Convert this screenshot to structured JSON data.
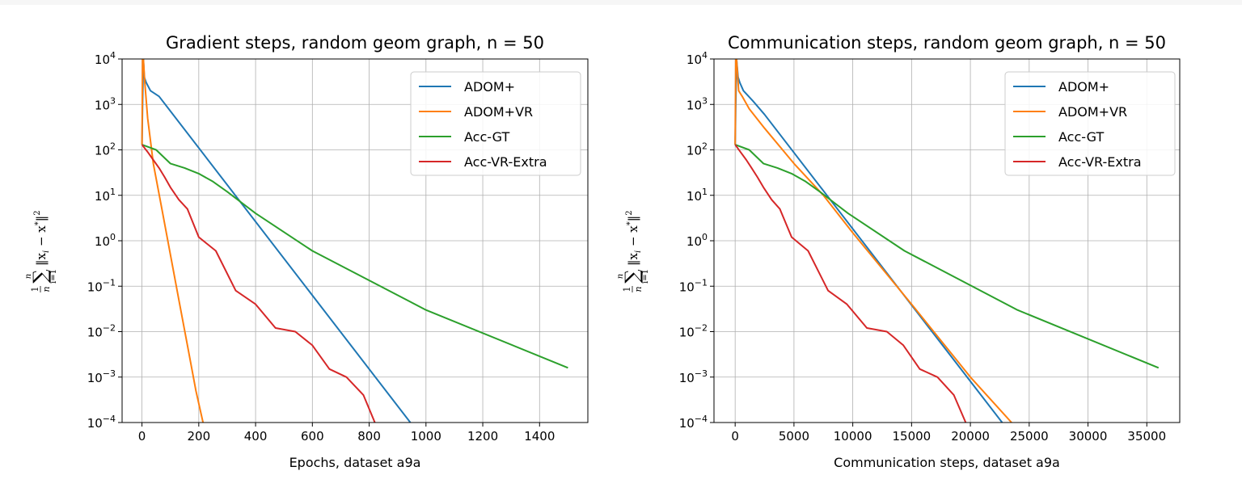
{
  "chart_data": [
    {
      "type": "line",
      "title": "Gradient steps, random geom graph, n = 50",
      "xlabel": "Epochs, dataset a9a",
      "ylabel": "1/n Σ_{i=1}^{n} ||x_i − x*||²",
      "yscale": "log",
      "xlim": [
        -70,
        1570
      ],
      "ylim": [
        0.0001,
        10000
      ],
      "xticks": [
        0,
        200,
        400,
        600,
        800,
        1000,
        1200,
        1400
      ],
      "xticklabels": [
        "0",
        "200",
        "400",
        "600",
        "800",
        "1000",
        "1200",
        "1400"
      ],
      "yticks_exp": [
        4,
        3,
        2,
        1,
        0,
        -1,
        -2,
        -3,
        -4
      ],
      "grid": true,
      "legend_loc": "top-right",
      "series": [
        {
          "name": "ADOM+",
          "color": "#1f77b4",
          "x": [
            0,
            2,
            5,
            8,
            15,
            30,
            60,
            945
          ],
          "y": [
            130,
            1000,
            10000,
            4000,
            3000,
            2000,
            1500,
            0.0001
          ]
        },
        {
          "name": "ADOM+VR",
          "color": "#ff7f0e",
          "x": [
            0,
            2,
            5,
            10,
            20,
            40,
            70,
            100,
            130,
            160,
            190,
            215
          ],
          "y": [
            130,
            10000,
            10000,
            3000,
            500,
            50,
            5,
            0.5,
            0.05,
            0.005,
            0.0005,
            0.0001
          ]
        },
        {
          "name": "Acc-GT",
          "color": "#2ca02c",
          "x": [
            0,
            50,
            100,
            150,
            200,
            250,
            300,
            400,
            600,
            1000,
            1500
          ],
          "y": [
            130,
            100,
            50,
            40,
            30,
            20,
            12,
            4,
            0.6,
            0.03,
            0.0016
          ]
        },
        {
          "name": "Acc-VR-Extra",
          "color": "#d62728",
          "x": [
            0,
            20,
            40,
            60,
            80,
            100,
            130,
            160,
            200,
            260,
            330,
            400,
            470,
            540,
            600,
            660,
            720,
            780,
            820
          ],
          "y": [
            130,
            90,
            60,
            40,
            25,
            15,
            8,
            5,
            1.2,
            0.6,
            0.08,
            0.04,
            0.012,
            0.01,
            0.005,
            0.0015,
            0.001,
            0.0004,
            0.0001
          ]
        }
      ]
    },
    {
      "type": "line",
      "title": "Communication steps, random geom graph, n = 50",
      "xlabel": "Communication steps, dataset a9a",
      "ylabel": "1/n Σ_{i=1}^{n} ||x_i − x*||²",
      "yscale": "log",
      "xlim": [
        -1800,
        37800
      ],
      "ylim": [
        0.0001,
        10000
      ],
      "xticks": [
        0,
        5000,
        10000,
        15000,
        20000,
        25000,
        30000,
        35000
      ],
      "xticklabels": [
        "0",
        "5000",
        "10000",
        "15000",
        "20000",
        "25000",
        "30000",
        "35000"
      ],
      "yticks_exp": [
        4,
        3,
        2,
        1,
        0,
        -1,
        -2,
        -3,
        -4
      ],
      "grid": true,
      "legend_loc": "top-right",
      "series": [
        {
          "name": "ADOM+",
          "color": "#1f77b4",
          "x": [
            0,
            50,
            120,
            250,
            400,
            700,
            1500,
            2500,
            22700
          ],
          "y": [
            130,
            1000,
            10000,
            4000,
            3000,
            2000,
            1200,
            600,
            0.0001
          ]
        },
        {
          "name": "ADOM+VR",
          "color": "#ff7f0e",
          "x": [
            0,
            50,
            120,
            300,
            600,
            1200,
            2500,
            5000,
            7500,
            10000,
            15000,
            20000,
            23500
          ],
          "y": [
            130,
            10000,
            10000,
            2000,
            1500,
            800,
            300,
            50,
            10,
            1.5,
            0.04,
            0.001,
            0.0001
          ]
        },
        {
          "name": "Acc-GT",
          "color": "#2ca02c",
          "x": [
            0,
            1200,
            2400,
            3600,
            4800,
            6000,
            7200,
            9600,
            14400,
            24000,
            36000
          ],
          "y": [
            130,
            100,
            50,
            40,
            30,
            20,
            12,
            4,
            0.6,
            0.03,
            0.0016
          ]
        },
        {
          "name": "Acc-VR-Extra",
          "color": "#d62728",
          "x": [
            0,
            450,
            950,
            1400,
            1900,
            2400,
            3100,
            3800,
            4800,
            6200,
            7900,
            9500,
            11200,
            12900,
            14300,
            15700,
            17200,
            18600,
            19600
          ],
          "y": [
            130,
            90,
            60,
            40,
            25,
            15,
            8,
            5,
            1.2,
            0.6,
            0.08,
            0.04,
            0.012,
            0.01,
            0.005,
            0.0015,
            0.001,
            0.0004,
            0.0001
          ]
        }
      ]
    }
  ]
}
